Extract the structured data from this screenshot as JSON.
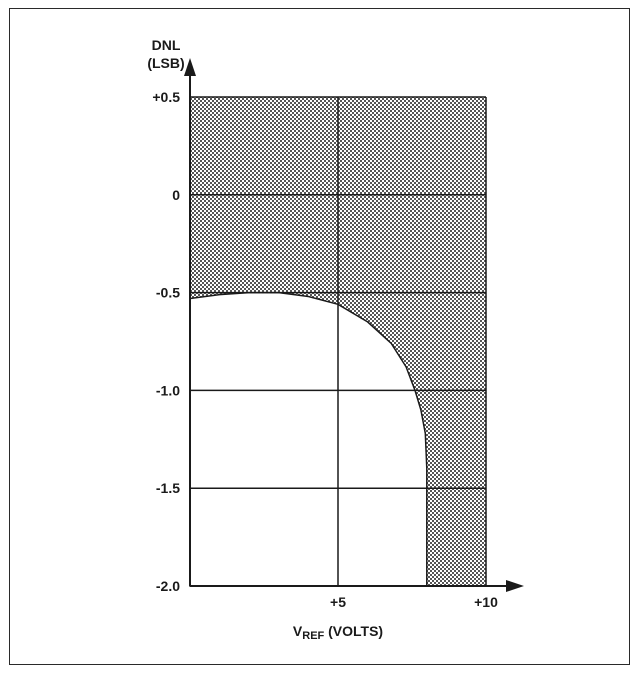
{
  "chart_data": {
    "type": "area",
    "y_axis": {
      "label_line1": "DNL",
      "label_line2": "(LSB)",
      "range": [
        -2.0,
        0.5
      ],
      "ticks": [
        "+0.5",
        "0",
        "-0.5",
        "-1.0",
        "-1.5",
        "-2.0"
      ]
    },
    "x_axis": {
      "label_main": "V",
      "label_sub": "REF",
      "label_rest": " (VOLTS)",
      "range": [
        0,
        10
      ],
      "ticks": [
        "+5",
        "+10"
      ]
    },
    "grid": true,
    "shaded_region_boundary": {
      "x": [
        0,
        1,
        2,
        3,
        4,
        5,
        6,
        6.8,
        7.3,
        7.6,
        7.8,
        7.95,
        8.0,
        8.0,
        8.0
      ],
      "y": [
        -0.53,
        -0.51,
        -0.5,
        -0.5,
        -0.52,
        -0.56,
        -0.65,
        -0.76,
        -0.88,
        -1.0,
        -1.1,
        -1.22,
        -1.4,
        -1.7,
        -2.0
      ]
    },
    "colors": {
      "shade": "#6a6a6a",
      "line": "#1a1a1a"
    }
  }
}
